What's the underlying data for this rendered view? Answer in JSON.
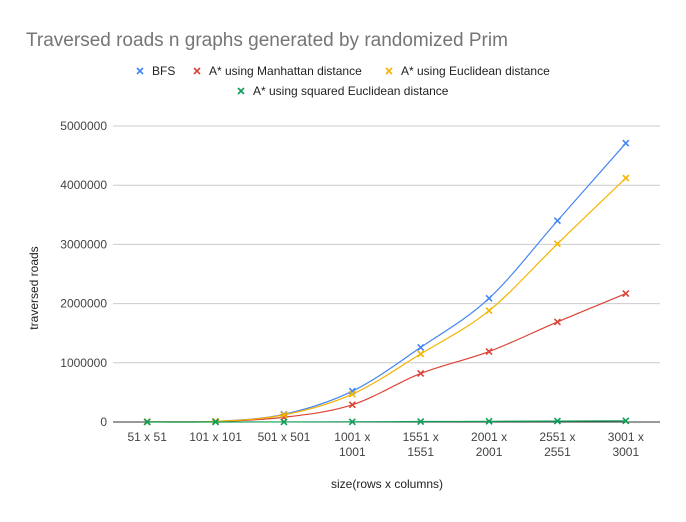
{
  "chart_data": {
    "type": "line",
    "title": "Traversed roads n graphs generated by randomized Prim",
    "xlabel": "size(rows x columns)",
    "ylabel": "traversed roads",
    "categories": [
      [
        "51 x 51"
      ],
      [
        "101 x 101"
      ],
      [
        "501 x 501"
      ],
      [
        "1001 x",
        "1001"
      ],
      [
        "1551 x",
        "1551"
      ],
      [
        "2001 x",
        "2001"
      ],
      [
        "2551 x",
        "2551"
      ],
      [
        "3001 x",
        "3001"
      ]
    ],
    "yticks": [
      "0",
      "1000000",
      "2000000",
      "3000000",
      "4000000",
      "5000000"
    ],
    "ylim": [
      0,
      5000000
    ],
    "grid": true,
    "legend_position": "top",
    "series": [
      {
        "name": "BFS",
        "color": "#4285f4",
        "values": [
          2600,
          10200,
          130000,
          520000,
          1260000,
          2090000,
          3400000,
          4710000
        ]
      },
      {
        "name": "A* using Manhattan distance",
        "color": "#db4437",
        "values": [
          2500,
          9000,
          80000,
          290000,
          820000,
          1190000,
          1690000,
          2170000
        ]
      },
      {
        "name": "A* using Euclidean distance",
        "color": "#f4b400",
        "values": [
          2600,
          10000,
          120000,
          470000,
          1150000,
          1880000,
          3010000,
          4120000
        ]
      },
      {
        "name": "A* using squared Euclidean distance",
        "color": "#0f9d58",
        "values": [
          100,
          200,
          1000,
          3000,
          8000,
          11000,
          15000,
          20000
        ]
      }
    ]
  }
}
